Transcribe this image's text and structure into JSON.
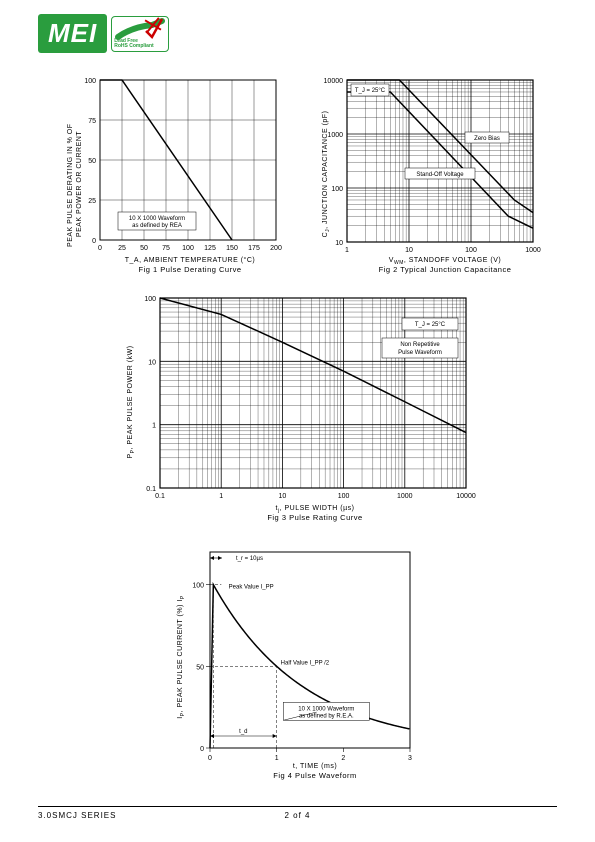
{
  "logo": {
    "text": "MEI",
    "badge_line1": "Lead Free",
    "badge_line2": "RoHS Compliant",
    "green": "#2a9d3e",
    "check_red": "#cc0000"
  },
  "fig1": {
    "type": "line",
    "ylabel": "PEAK PULSE DERATING IN % OF PEAK POWER OR CURRENT",
    "xlabel": "T_A, AMBIENT TEMPERATURE (°C)",
    "caption": "Fig 1  Pulse Derating Curve",
    "note_line1": "10 X 1000 Waveform",
    "note_line2": "as defined by REA",
    "xlim": [
      0,
      200
    ],
    "xtick_step": 25,
    "ylim": [
      0,
      100
    ],
    "ytick_step": 25,
    "xticks": [
      "0",
      "25",
      "50",
      "75",
      "100",
      "125",
      "150",
      "175",
      "200"
    ],
    "yticks": [
      "0",
      "25",
      "50",
      "75",
      "100"
    ],
    "data_x": [
      0,
      25,
      150
    ],
    "data_y": [
      100,
      100,
      0
    ],
    "line_width": 1.5,
    "grid_color": "#000000",
    "background_color": "#ffffff"
  },
  "fig2": {
    "type": "loglog-line",
    "ylabel": "C_J, JUNCTION CAPACITANCE (pF)",
    "xlabel": "V_WM, STANDOFF VOLTAGE (V)",
    "caption": "Fig 2  Typical Junction Capacitance",
    "temp_note": "T_J = 25°C",
    "label1": "Zero Bias",
    "label2": "Stand-Off Voltage",
    "xticks": [
      "1",
      "10",
      "100",
      "1000"
    ],
    "yticks": [
      "10",
      "100",
      "1000",
      "10000"
    ],
    "series": [
      {
        "name": "zero_bias",
        "points": [
          [
            1,
            10000
          ],
          [
            7,
            10000
          ],
          [
            500,
            60
          ],
          [
            1000,
            35
          ]
        ]
      },
      {
        "name": "standoff",
        "points": [
          [
            1,
            6000
          ],
          [
            5,
            6000
          ],
          [
            400,
            30
          ],
          [
            1000,
            18
          ]
        ]
      }
    ],
    "line_width": 1.5,
    "grid_color": "#000000",
    "background_color": "#ffffff"
  },
  "fig3": {
    "type": "loglog-line",
    "ylabel": "P_P, PEAK PULSE POWER (kW)",
    "xlabel": "t_j, PULSE WIDTH (µs)",
    "caption": "Fig 3 Pulse Rating Curve",
    "temp_note": "T_J = 25°C",
    "wave_note_line1": "Non Repetitive",
    "wave_note_line2": "Pulse Waveform",
    "xticks": [
      "0.1",
      "1",
      "10",
      "100",
      "1000",
      "10000"
    ],
    "yticks": [
      "0.1",
      "1",
      "10",
      "100"
    ],
    "data_points": [
      [
        0.1,
        100
      ],
      [
        1,
        55
      ],
      [
        10,
        20
      ],
      [
        100,
        7
      ],
      [
        1000,
        2.3
      ],
      [
        10000,
        0.75
      ]
    ],
    "line_width": 1.5,
    "grid_color": "#000000",
    "background_color": "#ffffff"
  },
  "fig4": {
    "type": "decay-curve",
    "ylabel": "I_P, PEAK PULSE CURRENT (%) I_P",
    "xlabel": "t, TIME (ms)",
    "caption": "Fig 4  Pulse Waveform",
    "rise_note": "t_r = 10µs",
    "peak_note": "Peak Value I_PP",
    "half_note": "Half Value I_PP/2",
    "wave_note_line1": "10 X 1000 Waveform",
    "wave_note_line2": "as defined by R.E.A.",
    "td_label": "t_d",
    "xlim": [
      0,
      3
    ],
    "xtick_step": 1,
    "ylim": [
      0,
      120
    ],
    "ytick_labels_at": [
      0,
      50,
      100
    ],
    "xticks": [
      "0",
      "1",
      "2",
      "3"
    ],
    "yticks": [
      "0",
      "50",
      "100"
    ],
    "peak_x": 0.05,
    "half_x": 1.0,
    "line_width": 1.5,
    "grid_color": "#000000",
    "background_color": "#ffffff"
  },
  "footer": {
    "series": "3.0SMCJ SERIES",
    "page": "2 of 4"
  }
}
